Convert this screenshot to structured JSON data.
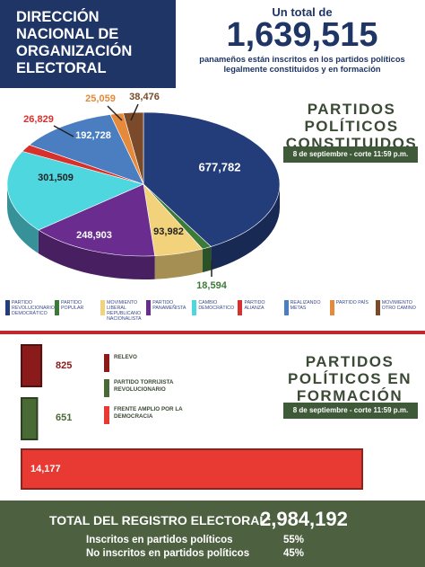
{
  "header": {
    "title": "DIRECCIÓN NACIONAL DE ORGANIZACIÓN ELECTORAL",
    "total_intro": "Un total de",
    "total": "1,639,515",
    "total_caption": "panameños están inscritos en los partidos políticos legalmente constituidos y en formación"
  },
  "chart_data": [
    {
      "type": "pie",
      "title": "PARTIDOS POLÍTICOS CONSTITUIDOS",
      "subtitle": "8 de septiembre - corte 11:59 p.m.",
      "categories": [
        "PARTIDO REVOLUCIONARIO DEMOCRÁTICO",
        "PARTIDO POPULAR",
        "MOVIMIENTO LIBERAL REPUBLICANO NACIONALISTA",
        "PARTIDO PANAMEÑISTA",
        "CAMBIO DEMOCRÁTICO",
        "PARTIDO ALIANZA",
        "REALIZANDO METAS",
        "PARTIDO PAÍS",
        "MOVIMIENTO OTRO CAMINO"
      ],
      "values": [
        677782,
        18594,
        93982,
        248903,
        301509,
        26829,
        192728,
        25059,
        38476
      ],
      "value_labels": [
        "677,782",
        "18,594",
        "93,982",
        "248,903",
        "301,509",
        "26,829",
        "192,728",
        "25,059",
        "38,476"
      ],
      "colors": [
        "#233d7b",
        "#3d7a3a",
        "#f2d27a",
        "#6a2d8f",
        "#4fd7e0",
        "#d8312c",
        "#4a7ec0",
        "#e58a3a",
        "#7a4a2a"
      ]
    },
    {
      "type": "bar",
      "title": "PARTIDOS POLÍTICOS EN FORMACIÓN",
      "subtitle": "8 de septiembre - corte 11:59 p.m.",
      "categories": [
        "RELEVO",
        "PARTIDO TORRIJISTA REVOLUCIONARIO",
        "FRENTE AMPLIO POR LA DEMOCRACIA"
      ],
      "values": [
        825,
        651,
        14177
      ],
      "value_labels": [
        "825",
        "651",
        "14,177"
      ],
      "colors": [
        "#8b1a1a",
        "#4a6a35",
        "#e83a33"
      ]
    }
  ],
  "footer": {
    "label": "TOTAL DEL REGISTRO ELECTORAL:",
    "total": "2,984,192",
    "rows": [
      [
        "Inscritos en partidos políticos",
        "55%"
      ],
      [
        "No inscritos en partidos políticos",
        "45%"
      ]
    ]
  }
}
